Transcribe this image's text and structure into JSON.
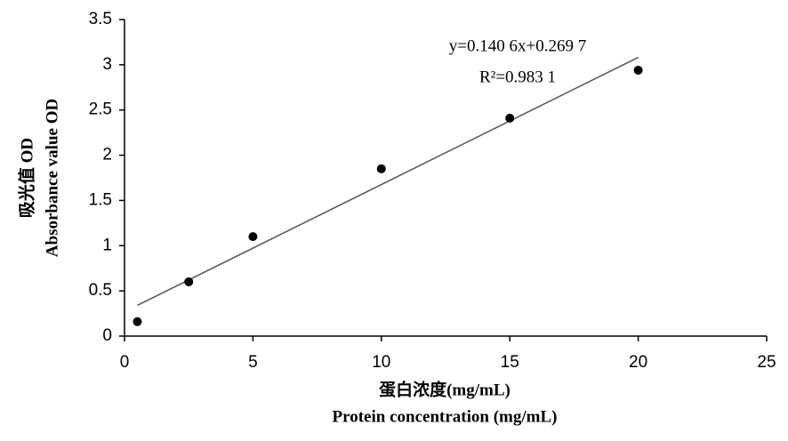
{
  "chart_data": {
    "type": "scatter",
    "x": [
      0.5,
      2.5,
      5,
      10,
      15,
      20
    ],
    "values": [
      0.16,
      0.6,
      1.1,
      1.85,
      2.41,
      2.94
    ],
    "color": "#000000",
    "trendline": {
      "slope": 0.1406,
      "intercept": 0.2697,
      "color": "#555555"
    },
    "annotations": [
      "y=0.140 6x+0.269 7",
      "R²=0.983 1"
    ],
    "ylabel": [
      "吸光值 OD",
      "Absorbance value OD"
    ],
    "xlabel": [
      "蛋白浓度(mg/mL)",
      "Protein concentration (mg/mL)"
    ],
    "xlim": [
      0,
      25
    ],
    "xticks": [
      0,
      5,
      10,
      15,
      20,
      25
    ],
    "ylim": [
      0,
      3.5
    ],
    "yticks": [
      0,
      0.5,
      1,
      1.5,
      2,
      2.5,
      3,
      3.5
    ],
    "grid": false
  }
}
